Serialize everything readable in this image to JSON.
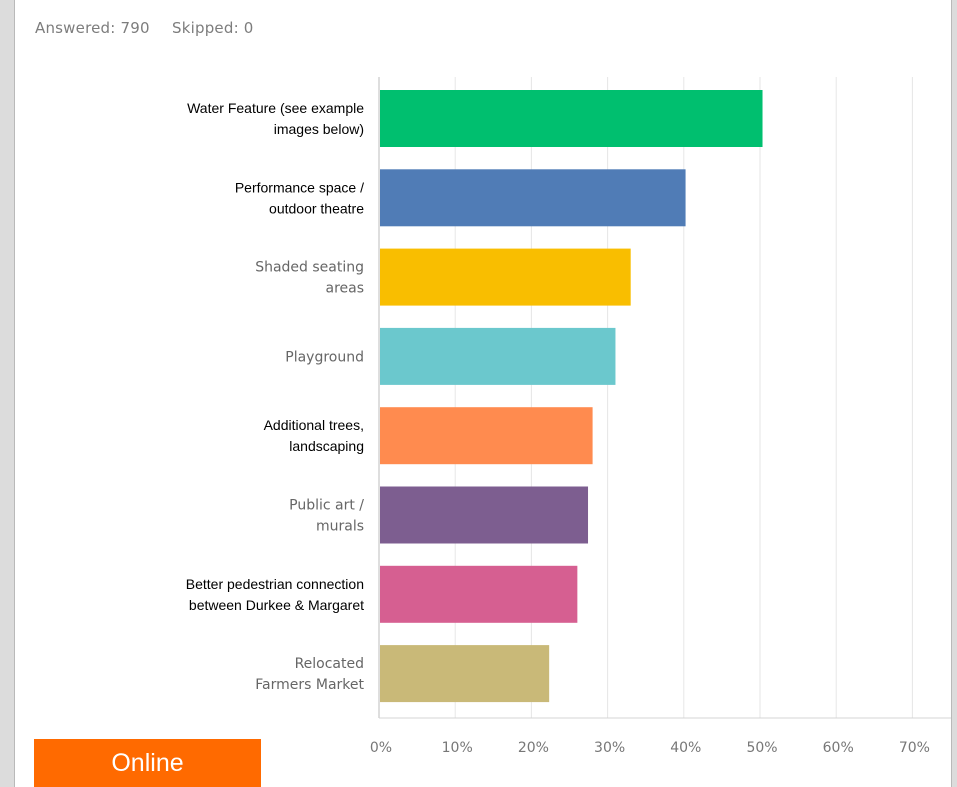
{
  "summary": {
    "answered": "Answered: 790",
    "skipped": "Skipped: 0"
  },
  "badge": {
    "label": "Online",
    "color": "#ff6a00"
  },
  "chart_data": {
    "type": "bar",
    "orientation": "horizontal",
    "categories": [
      [
        "Water Feature (see example",
        "images below)"
      ],
      [
        "Performance space /",
        "outdoor theatre"
      ],
      [
        "Shaded seating",
        "areas"
      ],
      [
        "Playground"
      ],
      [
        "Additional trees,",
        "landscaping"
      ],
      [
        "Public art /",
        "murals"
      ],
      [
        "Better pedestrian connection",
        "between Durkee & Margaret"
      ],
      [
        "Relocated",
        "Farmers Market"
      ]
    ],
    "values": [
      50.2,
      40.1,
      32.9,
      30.9,
      27.9,
      27.3,
      25.9,
      22.2
    ],
    "colors": [
      "#00bf6f",
      "#507cb6",
      "#f9be00",
      "#6bc8cd",
      "#ff8b4f",
      "#7d5e90",
      "#d65f91",
      "#c9b978"
    ],
    "xticks": [
      "0%",
      "10%",
      "20%",
      "30%",
      "40%",
      "50%",
      "60%",
      "70%"
    ],
    "xlim": [
      0,
      70
    ],
    "grid": true
  }
}
